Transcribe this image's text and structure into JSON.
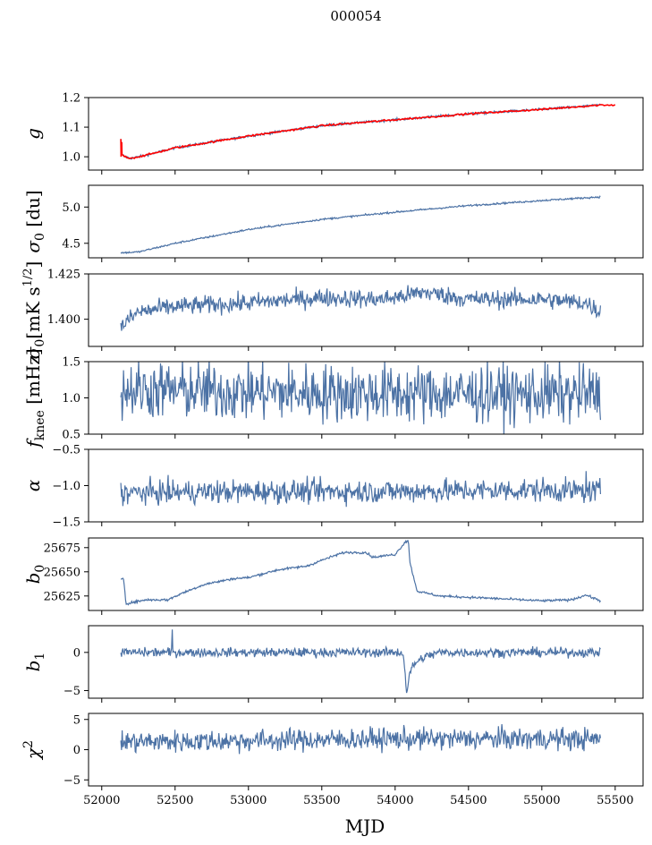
{
  "figure_title": "000054",
  "x_axis_label": "MJD",
  "chart_data": {
    "type": "line",
    "title": "000054",
    "xlabel": "MJD",
    "xlim": [
      51910,
      55690
    ],
    "xticks": [
      "52000",
      "52500",
      "53000",
      "53500",
      "54000",
      "54500",
      "55000",
      "55500"
    ],
    "x_start": 52130,
    "x_end": 55400,
    "series_color": "#4c72a5",
    "overlay_color": "#ff0000",
    "panels": [
      {
        "name": "g",
        "ylabel": "g",
        "ylim": [
          0.955,
          1.2
        ],
        "yticks": [
          "1.0",
          "1.1",
          "1.2"
        ],
        "ytick_values": [
          1.0,
          1.1,
          1.2
        ],
        "key_points": [
          [
            52130,
            1.01
          ],
          [
            52160,
            1.0
          ],
          [
            52200,
            0.995
          ],
          [
            52300,
            1.005
          ],
          [
            52500,
            1.03
          ],
          [
            53000,
            1.07
          ],
          [
            53500,
            1.105
          ],
          [
            54000,
            1.125
          ],
          [
            54500,
            1.145
          ],
          [
            55000,
            1.16
          ],
          [
            55400,
            1.175
          ]
        ],
        "red_overlay": true,
        "red_extends_to": 55500,
        "noise": 0.002,
        "spike": [
          52130,
          1.06
        ]
      },
      {
        "name": "sigma0_du",
        "ylabel": "σ0 [du]",
        "ylim": [
          4.3,
          5.3
        ],
        "yticks": [
          "4.5",
          "5.0"
        ],
        "ytick_values": [
          4.5,
          5.0
        ],
        "key_points": [
          [
            52150,
            4.37
          ],
          [
            52250,
            4.38
          ],
          [
            52500,
            4.5
          ],
          [
            53000,
            4.69
          ],
          [
            53500,
            4.83
          ],
          [
            54000,
            4.93
          ],
          [
            54500,
            5.02
          ],
          [
            55000,
            5.09
          ],
          [
            55400,
            5.14
          ]
        ],
        "noise": 0.006
      },
      {
        "name": "sigma0_mK",
        "ylabel": "σ0 [mK s^1/2]",
        "ylim": [
          1.385,
          1.425
        ],
        "yticks": [
          "1.400",
          "1.425"
        ],
        "ytick_values": [
          1.4,
          1.425
        ],
        "key_points": [
          [
            52130,
            1.396
          ],
          [
            52250,
            1.404
          ],
          [
            52500,
            1.407
          ],
          [
            53000,
            1.409
          ],
          [
            53500,
            1.412
          ],
          [
            53900,
            1.411
          ],
          [
            54000,
            1.412
          ],
          [
            54200,
            1.415
          ],
          [
            54500,
            1.411
          ],
          [
            55000,
            1.411
          ],
          [
            55300,
            1.409
          ],
          [
            55400,
            1.404
          ]
        ],
        "noise": 0.0025
      },
      {
        "name": "fknee",
        "ylabel": "f_knee [mHz]",
        "ylim": [
          0.5,
          1.5
        ],
        "yticks": [
          "0.5",
          "1.0",
          "1.5"
        ],
        "ytick_values": [
          0.5,
          1.0,
          1.5
        ],
        "key_points": [
          [
            52130,
            1.12
          ],
          [
            53000,
            1.08
          ],
          [
            54000,
            1.06
          ],
          [
            55000,
            1.05
          ],
          [
            55400,
            1.05
          ]
        ],
        "noise": 0.2
      },
      {
        "name": "alpha",
        "ylabel": "α",
        "ylim": [
          -1.5,
          -0.5
        ],
        "yticks": [
          "−1.5",
          "−1.0",
          "−0.5"
        ],
        "ytick_values": [
          -1.5,
          -1.0,
          -0.5
        ],
        "key_points": [
          [
            52130,
            -1.1
          ],
          [
            53000,
            -1.08
          ],
          [
            54000,
            -1.08
          ],
          [
            55000,
            -1.06
          ],
          [
            55400,
            -1.08
          ]
        ],
        "noise": 0.08,
        "spike": [
          55300,
          -0.8
        ]
      },
      {
        "name": "b0",
        "ylabel": "b0",
        "ylim": [
          25610,
          25685
        ],
        "yticks": [
          "25625",
          "25650",
          "25675"
        ],
        "ytick_values": [
          25625,
          25650,
          25675
        ],
        "key_points": [
          [
            52130,
            25643
          ],
          [
            52150,
            25643
          ],
          [
            52165,
            25617
          ],
          [
            52300,
            25621
          ],
          [
            52450,
            25621
          ],
          [
            52550,
            25628
          ],
          [
            52700,
            25637
          ],
          [
            52900,
            25643
          ],
          [
            53000,
            25644
          ],
          [
            53200,
            25652
          ],
          [
            53400,
            25656
          ],
          [
            53500,
            25662
          ],
          [
            53650,
            25670
          ],
          [
            53800,
            25670
          ],
          [
            53850,
            25665
          ],
          [
            54000,
            25668
          ],
          [
            54070,
            25681
          ],
          [
            54090,
            25683
          ],
          [
            54100,
            25660
          ],
          [
            54150,
            25630
          ],
          [
            54300,
            25625
          ],
          [
            54600,
            25623
          ],
          [
            55000,
            25620
          ],
          [
            55200,
            25621
          ],
          [
            55300,
            25626
          ],
          [
            55400,
            25620
          ]
        ],
        "noise": 0.6
      },
      {
        "name": "b1",
        "ylabel": "b1",
        "ylim": [
          -6,
          3.5
        ],
        "yticks": [
          "−5",
          "0"
        ],
        "ytick_values": [
          -5,
          0
        ],
        "key_points": [
          [
            52130,
            0.0
          ],
          [
            54050,
            0.0
          ],
          [
            54060,
            -1.0
          ],
          [
            54080,
            -5.5
          ],
          [
            54095,
            -3.0
          ],
          [
            54130,
            -1.5
          ],
          [
            54200,
            -0.6
          ],
          [
            54300,
            0.0
          ],
          [
            55400,
            0.0
          ]
        ],
        "noise": 0.3,
        "spike": [
          52480,
          3.0
        ]
      },
      {
        "name": "chi2",
        "ylabel": "χ^2",
        "ylim": [
          -6,
          6
        ],
        "yticks": [
          "−5",
          "0",
          "5"
        ],
        "ytick_values": [
          -5,
          0,
          5
        ],
        "key_points": [
          [
            52130,
            1.3
          ],
          [
            53000,
            1.5
          ],
          [
            54000,
            1.8
          ],
          [
            55000,
            1.8
          ],
          [
            55400,
            1.7
          ]
        ],
        "noise": 0.9
      }
    ]
  }
}
